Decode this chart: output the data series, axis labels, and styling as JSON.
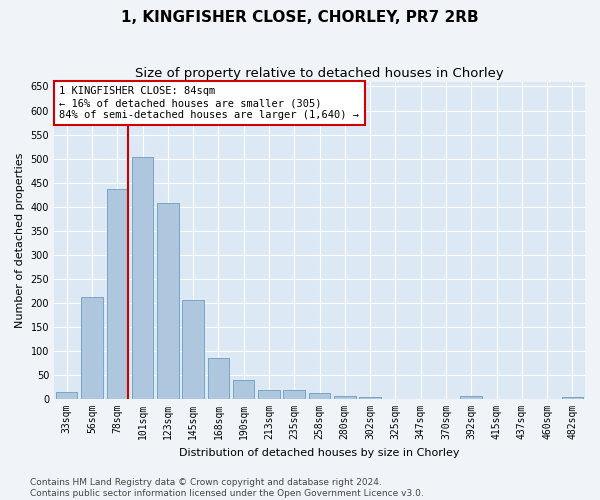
{
  "title": "1, KINGFISHER CLOSE, CHORLEY, PR7 2RB",
  "subtitle": "Size of property relative to detached houses in Chorley",
  "xlabel": "Distribution of detached houses by size in Chorley",
  "ylabel": "Number of detached properties",
  "categories": [
    "33sqm",
    "56sqm",
    "78sqm",
    "101sqm",
    "123sqm",
    "145sqm",
    "168sqm",
    "190sqm",
    "213sqm",
    "235sqm",
    "258sqm",
    "280sqm",
    "302sqm",
    "325sqm",
    "347sqm",
    "370sqm",
    "392sqm",
    "415sqm",
    "437sqm",
    "460sqm",
    "482sqm"
  ],
  "values": [
    15,
    212,
    437,
    503,
    407,
    207,
    85,
    39,
    18,
    18,
    12,
    6,
    5,
    0,
    0,
    0,
    6,
    0,
    0,
    0,
    5
  ],
  "bar_color": "#aec6de",
  "bar_edge_color": "#6a9ec0",
  "bg_color": "#dce8f3",
  "grid_color": "#ffffff",
  "vline_color": "#cc0000",
  "vline_x_index": 2,
  "annotation_text": "1 KINGFISHER CLOSE: 84sqm\n← 16% of detached houses are smaller (305)\n84% of semi-detached houses are larger (1,640) →",
  "annotation_box_edgecolor": "#cc0000",
  "annotation_bg": "#ffffff",
  "ylim": [
    0,
    660
  ],
  "yticks": [
    0,
    50,
    100,
    150,
    200,
    250,
    300,
    350,
    400,
    450,
    500,
    550,
    600,
    650
  ],
  "footer_text": "Contains HM Land Registry data © Crown copyright and database right 2024.\nContains public sector information licensed under the Open Government Licence v3.0.",
  "title_fontsize": 11,
  "subtitle_fontsize": 9.5,
  "axis_label_fontsize": 8,
  "tick_fontsize": 7,
  "annotation_fontsize": 7.5,
  "footer_fontsize": 6.5,
  "fig_facecolor": "#f0f4f8"
}
